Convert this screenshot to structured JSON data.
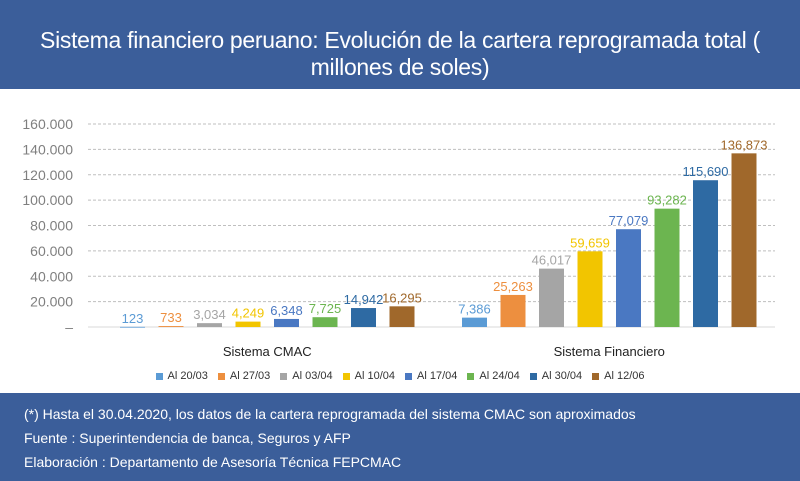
{
  "header": {
    "title": "Sistema financiero peruano: Evolución de la cartera reprogramada total ( millones de soles)"
  },
  "footer": {
    "lines": [
      "(*) Hasta el 30.04.2020, los datos de la cartera reprogramada del sistema CMAC son aproximados",
      "Fuente : Superintendencia de banca, Seguros y AFP",
      "Elaboración : Departamento de Asesoría Técnica FEPCMAC"
    ]
  },
  "colors": {
    "header_bg": "#3b5e9a",
    "grid": "#bfbfbf"
  },
  "chart_data": {
    "type": "bar",
    "categories": [
      "Sistema CMAC",
      "Sistema Financiero"
    ],
    "yticks": [
      "–",
      "20.000",
      "40.000",
      "60.000",
      "80.000",
      "100.000",
      "120.000",
      "140.000",
      "160.000"
    ],
    "ylim": [
      0,
      160000
    ],
    "grid": true,
    "legend_position": "bottom",
    "series": [
      {
        "name": "Al 20/03",
        "color": "#5b9bd5",
        "values": [
          123,
          7386
        ],
        "labels": [
          "123",
          "7,386"
        ]
      },
      {
        "name": "Al 27/03",
        "color": "#ed8f3f",
        "values": [
          733,
          25263
        ],
        "labels": [
          "733",
          "25,263"
        ]
      },
      {
        "name": "Al 03/04",
        "color": "#a5a5a5",
        "values": [
          3034,
          46017
        ],
        "labels": [
          "3,034",
          "46,017"
        ]
      },
      {
        "name": "Al 10/04",
        "color": "#f2c500",
        "values": [
          4249,
          59659
        ],
        "labels": [
          "4,249",
          "59,659"
        ]
      },
      {
        "name": "Al 17/04",
        "color": "#4a78c2",
        "values": [
          6348,
          77079
        ],
        "labels": [
          "6,348",
          "77,079"
        ]
      },
      {
        "name": "Al 24/04",
        "color": "#6cb550",
        "values": [
          7725,
          93282
        ],
        "labels": [
          "7,725",
          "93,282"
        ]
      },
      {
        "name": "Al 30/04",
        "color": "#2e6aa3",
        "values": [
          14942,
          115690
        ],
        "labels": [
          "14,942",
          "115,690"
        ]
      },
      {
        "name": "Al 12/06",
        "color": "#a0682b",
        "values": [
          16295,
          136873
        ],
        "labels": [
          "16,295",
          "136,873"
        ]
      }
    ]
  }
}
